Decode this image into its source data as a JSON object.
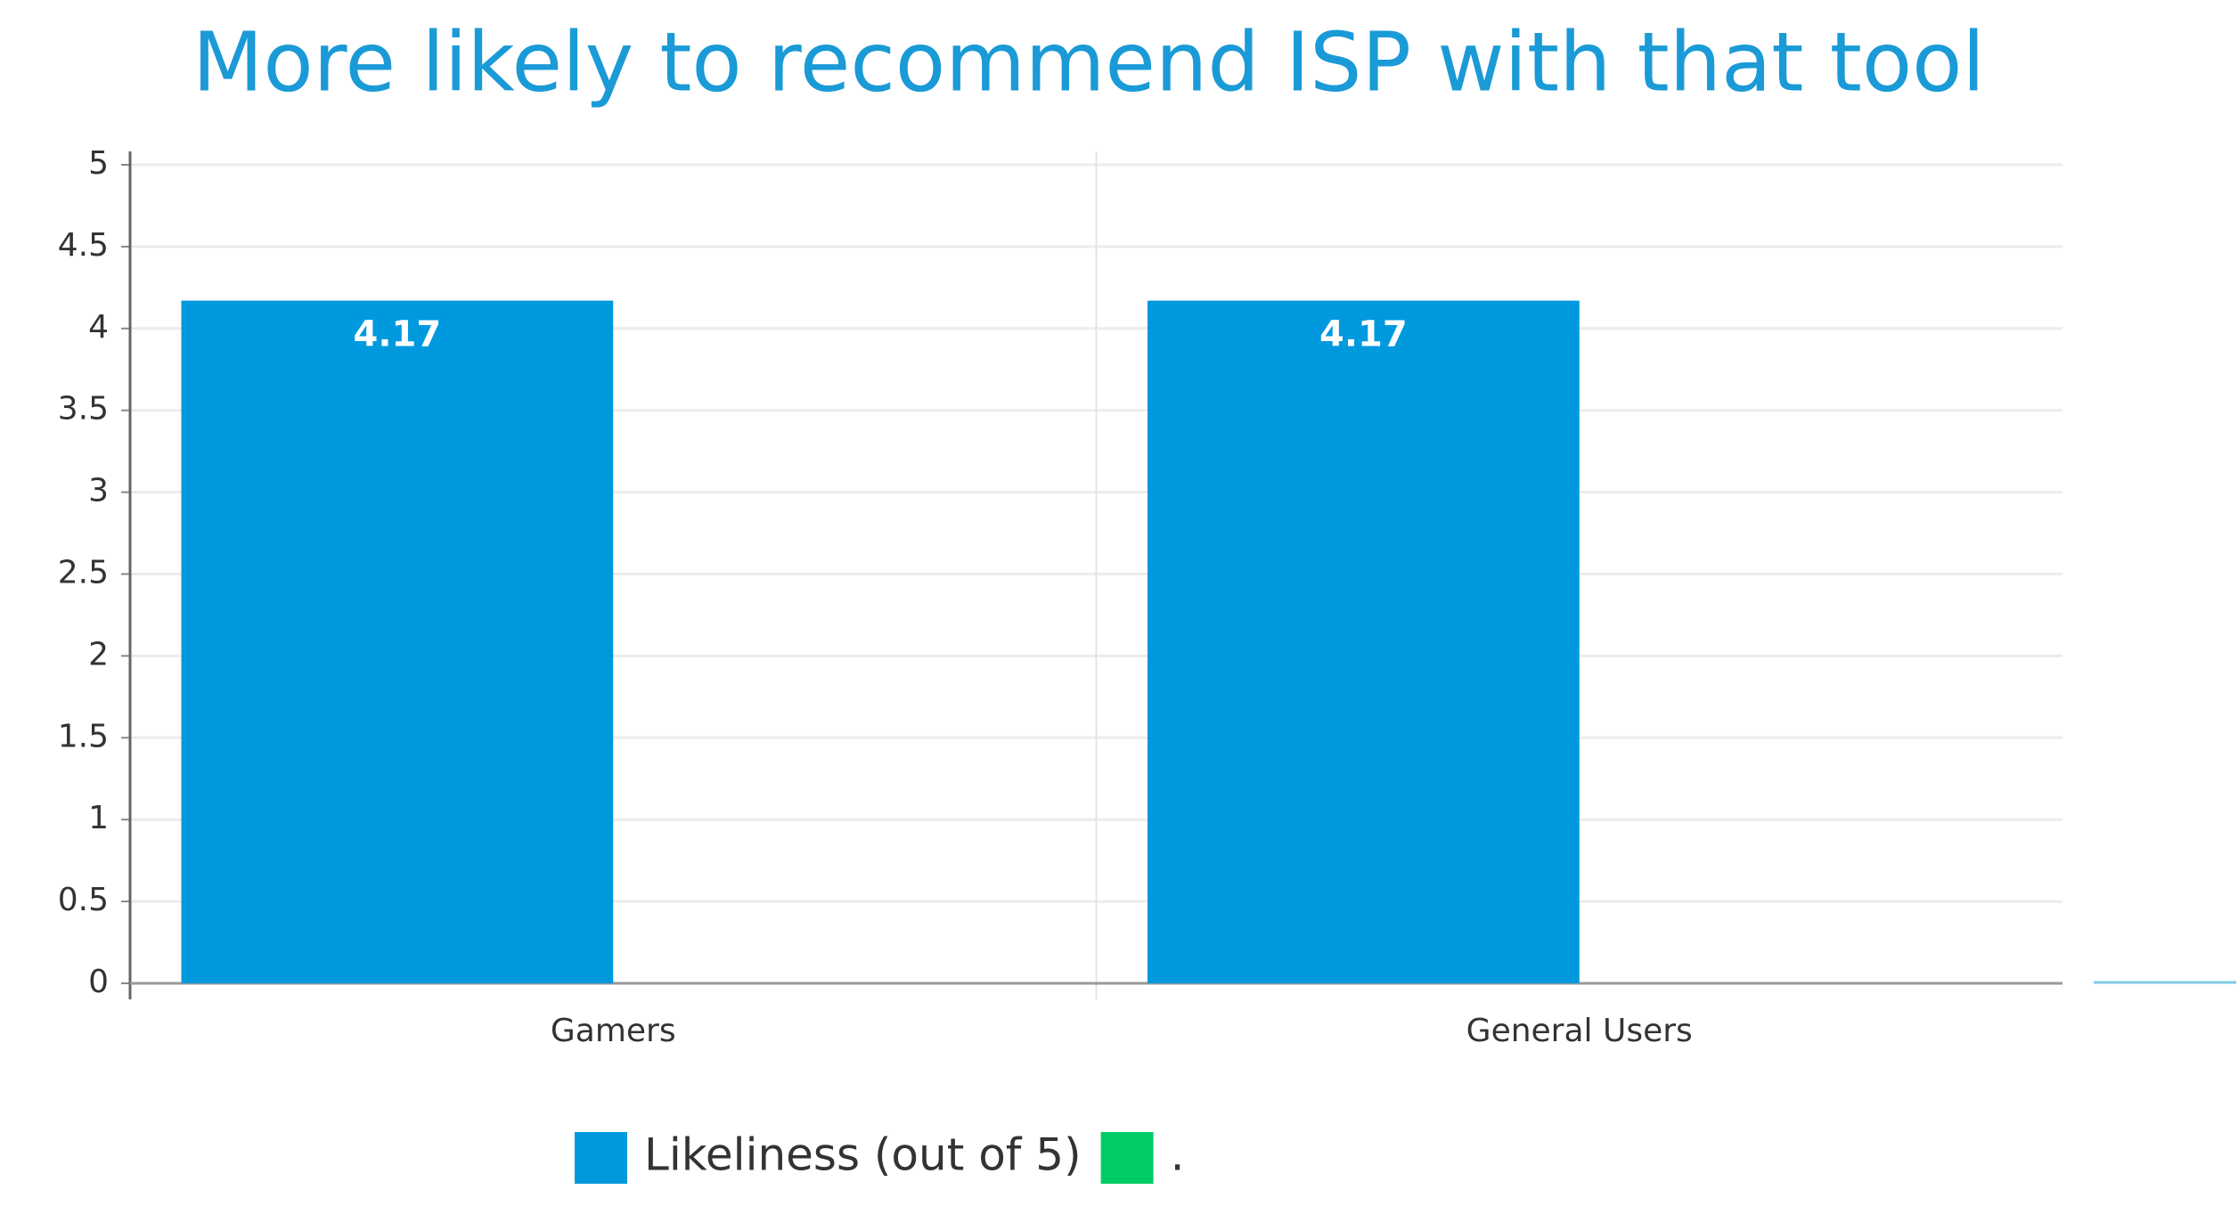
{
  "chart_data": {
    "type": "bar",
    "title": "More likely to recommend ISP with that tool",
    "categories": [
      "Gamers",
      "General Users"
    ],
    "series": [
      {
        "name": "Likeliness (out of 5)",
        "color": "#0099dd",
        "values": [
          4.17,
          4.17
        ]
      },
      {
        "name": ".",
        "color": "#00cc66",
        "values": [
          null,
          null
        ]
      }
    ],
    "ylim": [
      0,
      5
    ],
    "yticks": [
      0,
      0.5,
      1,
      1.5,
      2,
      2.5,
      3,
      3.5,
      4,
      4.5,
      5
    ],
    "grid": true
  }
}
